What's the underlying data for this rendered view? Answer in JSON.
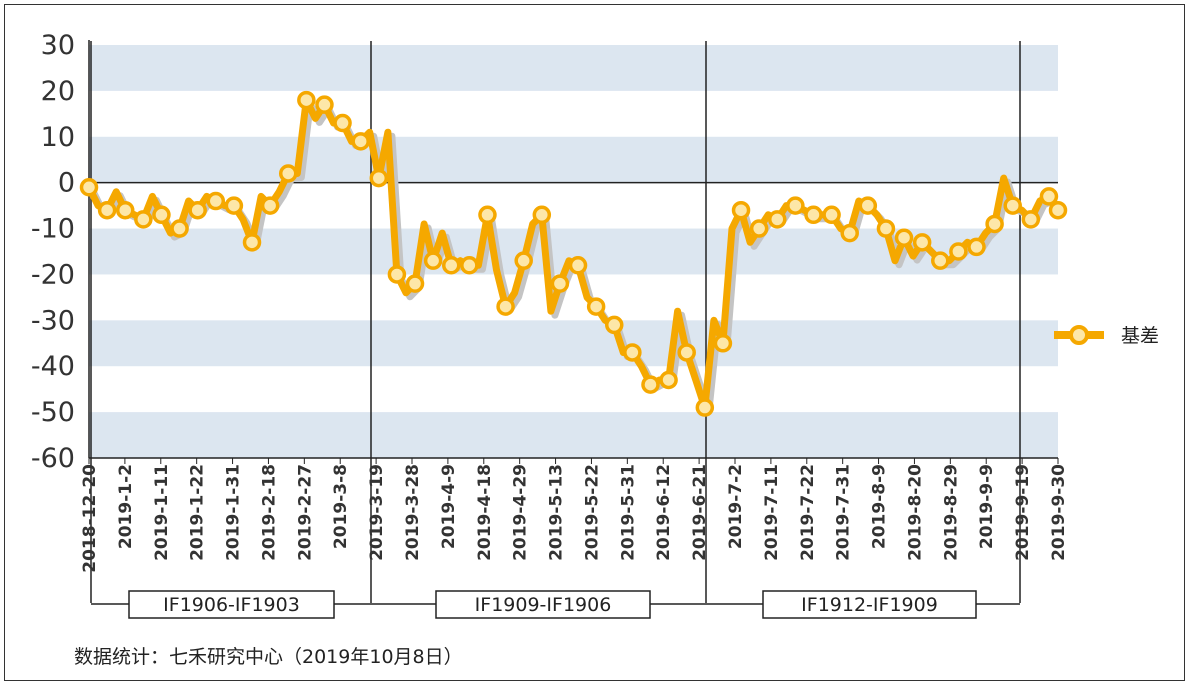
{
  "chart_data": {
    "type": "line",
    "ylim": [
      -60,
      30
    ],
    "yticks": [
      30,
      20,
      10,
      0,
      -10,
      -20,
      -30,
      -40,
      -50,
      -60
    ],
    "grid_bands": true,
    "legend_position": "right",
    "colors": {
      "series": "#f5a800",
      "shadow": "#c4c4c4",
      "band": "#dce6f0",
      "marker_fill": "#fde7a8"
    },
    "x_tick_labels": [
      "2018-12-20",
      "2019-1-2",
      "2019-1-11",
      "2019-1-22",
      "2019-1-31",
      "2019-2-18",
      "2019-2-27",
      "2019-3-8",
      "2019-3-19",
      "2019-3-28",
      "2019-4-9",
      "2019-4-18",
      "2019-4-29",
      "2019-5-13",
      "2019-5-22",
      "2019-5-31",
      "2019-6-12",
      "2019-6-21",
      "2019-7-2",
      "2019-7-11",
      "2019-7-22",
      "2019-7-31",
      "2019-8-9",
      "2019-8-20",
      "2019-8-29",
      "2019-9-9",
      "2019-9-19",
      "2019-9-30"
    ],
    "series": [
      {
        "name": "基差",
        "values": [
          -1,
          -5,
          -6,
          -2,
          -6,
          -7,
          -8,
          -3,
          -7,
          -11,
          -10,
          -4,
          -6,
          -3,
          -4,
          -5,
          -5,
          -8,
          -13,
          -3,
          -5,
          -2,
          2,
          2,
          18,
          14,
          17,
          13,
          13,
          9,
          9,
          11,
          1,
          11,
          -20,
          -24,
          -22,
          -9,
          -17,
          -11,
          -18,
          -17,
          -18,
          -18,
          -7,
          -19,
          -27,
          -24,
          -17,
          -9,
          -7,
          -28,
          -22,
          -17,
          -18,
          -25,
          -27,
          -30,
          -31,
          -37,
          -37,
          -40,
          -44,
          -43,
          -43,
          -28,
          -37,
          -43,
          -49,
          -30,
          -35,
          -10,
          -6,
          -13,
          -10,
          -7,
          -8,
          -5,
          -5,
          -6,
          -7,
          -7,
          -7,
          -10,
          -11,
          -4,
          -5,
          -7,
          -10,
          -17,
          -12,
          -16,
          -13,
          -15,
          -17,
          -17,
          -15,
          -13,
          -14,
          -11,
          -9,
          1,
          -5,
          -6,
          -8,
          -4,
          -3,
          -6
        ],
        "labeled_points": [
          {
            "index": 0,
            "value": -1
          },
          {
            "index": 4,
            "value": -6
          }
        ]
      }
    ],
    "contract_periods": [
      {
        "label": "IF1906-IF1903",
        "start_index": 0,
        "end_index": 33
      },
      {
        "label": "IF1909-IF1906",
        "start_index": 34,
        "end_index": 70
      },
      {
        "label": "IF1912-IF1909",
        "start_index": 71,
        "end_index": 103
      }
    ]
  },
  "legend": {
    "label": "基差"
  },
  "source": "数据统计：七禾研究中心（2019年10月8日）"
}
